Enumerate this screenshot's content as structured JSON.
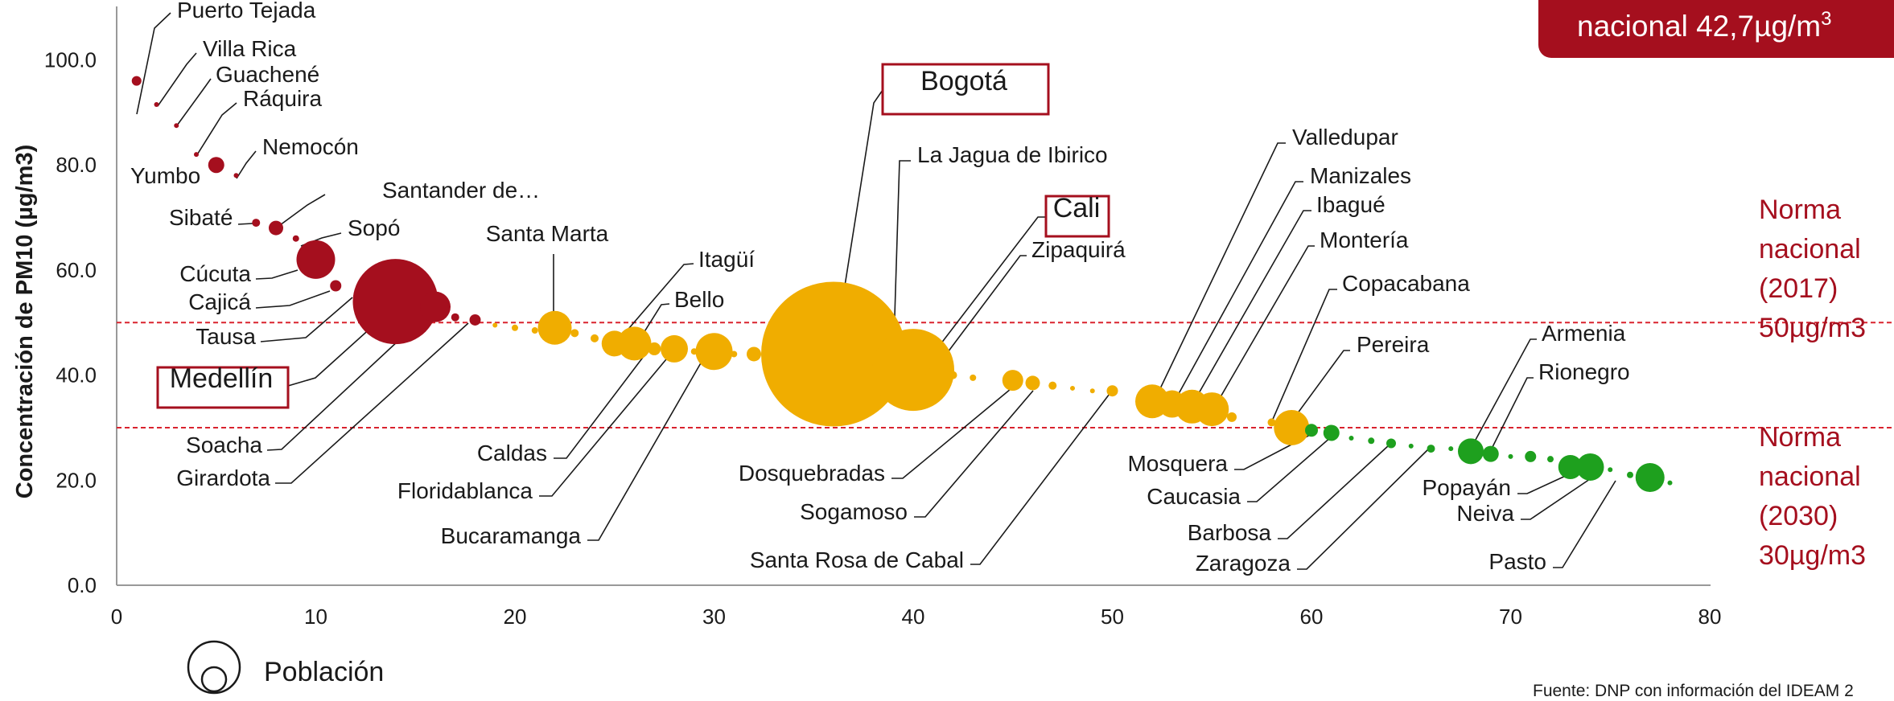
{
  "banner": {
    "text": "nacional 42,7µg/m",
    "sup": "3"
  },
  "norms": [
    {
      "y": 50,
      "lines": [
        "Norma",
        "nacional",
        "(2017)",
        "50µg/m3"
      ]
    },
    {
      "y": 30,
      "lines": [
        "Norma",
        "nacional",
        "(2030)",
        "30µg/m3"
      ]
    }
  ],
  "legend_label": "Población",
  "source": "Fuente: DNP con información del IDEAM 2",
  "colors": {
    "red": "#a50f1e",
    "orange": "#f0ad00",
    "green": "#1ea01e",
    "norm_line": "#d9232e"
  },
  "chart_data": {
    "type": "scatter",
    "ylabel": "Concentración  de PM10 (µg/m3)",
    "xlim": [
      0,
      80
    ],
    "ylim": [
      0,
      110
    ],
    "xticks": [
      0,
      10,
      20,
      30,
      40,
      50,
      60,
      70,
      80
    ],
    "yticks": [
      "0.0",
      "20.0",
      "40.0",
      "60.0",
      "80.0",
      "100.0"
    ],
    "points": [
      {
        "name": "Puerto Tejada",
        "x": 1,
        "y": 96,
        "r": 6,
        "c": "red"
      },
      {
        "name": "Villa Rica",
        "x": 2,
        "y": 91.5,
        "r": 3,
        "c": "red"
      },
      {
        "name": "Guachené",
        "x": 3,
        "y": 87.5,
        "r": 3,
        "c": "red"
      },
      {
        "name": "Ráquira",
        "x": 4,
        "y": 82,
        "r": 3,
        "c": "red"
      },
      {
        "name": "Yumbo",
        "x": 5,
        "y": 80,
        "r": 10,
        "c": "red"
      },
      {
        "name": "Nemocón",
        "x": 6,
        "y": 78,
        "r": 3,
        "c": "red"
      },
      {
        "name": "Sibaté",
        "x": 7,
        "y": 69,
        "r": 5,
        "c": "red"
      },
      {
        "name": "Santander de…",
        "x": 8,
        "y": 68,
        "r": 9,
        "c": "red"
      },
      {
        "name": "Sopó",
        "x": 9,
        "y": 66,
        "r": 4,
        "c": "red"
      },
      {
        "name": "Cúcuta",
        "x": 10,
        "y": 62,
        "r": 24,
        "c": "red"
      },
      {
        "name": "Cajicá",
        "x": 11,
        "y": 57,
        "r": 7,
        "c": "red"
      },
      {
        "name": "Tausa",
        "x": 12,
        "y": 55,
        "r": 3,
        "c": "red"
      },
      {
        "name": "Medellín",
        "x": 14,
        "y": 54,
        "r": 53,
        "c": "red"
      },
      {
        "name": "Soacha",
        "x": 16,
        "y": 53,
        "r": 19,
        "c": "red"
      },
      {
        "name": "",
        "x": 17,
        "y": 51,
        "r": 5,
        "c": "red"
      },
      {
        "name": "Girardota",
        "x": 18,
        "y": 50.5,
        "r": 7,
        "c": "red"
      },
      {
        "name": "",
        "x": 19,
        "y": 49.5,
        "r": 3,
        "c": "orange"
      },
      {
        "name": "",
        "x": 20,
        "y": 49,
        "r": 4,
        "c": "orange"
      },
      {
        "name": "",
        "x": 21,
        "y": 48.5,
        "r": 4,
        "c": "orange"
      },
      {
        "name": "Santa Marta",
        "x": 22,
        "y": 49,
        "r": 21,
        "c": "orange"
      },
      {
        "name": "",
        "x": 23,
        "y": 48,
        "r": 5,
        "c": "orange"
      },
      {
        "name": "",
        "x": 24,
        "y": 47,
        "r": 5,
        "c": "orange"
      },
      {
        "name": "Caldas",
        "x": 25,
        "y": 46,
        "r": 16,
        "c": "orange"
      },
      {
        "name": "Itagüí",
        "x": 26,
        "y": 46,
        "r": 21,
        "c": "orange"
      },
      {
        "name": "Bello",
        "x": 27,
        "y": 45,
        "r": 8,
        "c": "orange"
      },
      {
        "name": "Floridablanca",
        "x": 28,
        "y": 45,
        "r": 17,
        "c": "orange"
      },
      {
        "name": "",
        "x": 29,
        "y": 44.5,
        "r": 4,
        "c": "orange"
      },
      {
        "name": "Bucaramanga",
        "x": 30,
        "y": 44.5,
        "r": 23,
        "c": "orange"
      },
      {
        "name": "",
        "x": 31,
        "y": 44,
        "r": 4,
        "c": "orange"
      },
      {
        "name": "",
        "x": 32,
        "y": 44,
        "r": 9,
        "c": "orange"
      },
      {
        "name": "Bogotá",
        "x": 36,
        "y": 44,
        "r": 90,
        "c": "orange"
      },
      {
        "name": "La Jagua de Ibirico",
        "x": 39,
        "y": 42,
        "r": 4,
        "c": "orange"
      },
      {
        "name": "Cali",
        "x": 40,
        "y": 41,
        "r": 51,
        "c": "orange"
      },
      {
        "name": "Zipaquirá",
        "x": 41,
        "y": 40,
        "r": 9,
        "c": "orange"
      },
      {
        "name": "",
        "x": 42,
        "y": 40,
        "r": 5,
        "c": "orange"
      },
      {
        "name": "",
        "x": 43,
        "y": 39.5,
        "r": 4,
        "c": "orange"
      },
      {
        "name": "Dosquebradas",
        "x": 45,
        "y": 39,
        "r": 13,
        "c": "orange"
      },
      {
        "name": "Sogamoso",
        "x": 46,
        "y": 38.5,
        "r": 9,
        "c": "orange"
      },
      {
        "name": "",
        "x": 47,
        "y": 38,
        "r": 5,
        "c": "orange"
      },
      {
        "name": "",
        "x": 48,
        "y": 37.5,
        "r": 3,
        "c": "orange"
      },
      {
        "name": "",
        "x": 49,
        "y": 37,
        "r": 3,
        "c": "orange"
      },
      {
        "name": "Santa Rosa de Cabal",
        "x": 50,
        "y": 37,
        "r": 7,
        "c": "orange"
      },
      {
        "name": "Valledupar",
        "x": 52,
        "y": 35,
        "r": 21,
        "c": "orange"
      },
      {
        "name": "Manizales",
        "x": 53,
        "y": 34.5,
        "r": 17,
        "c": "orange"
      },
      {
        "name": "Ibagué",
        "x": 54,
        "y": 34,
        "r": 21,
        "c": "orange"
      },
      {
        "name": "Montería",
        "x": 55,
        "y": 33.5,
        "r": 21,
        "c": "orange"
      },
      {
        "name": "",
        "x": 56,
        "y": 32,
        "r": 6,
        "c": "orange"
      },
      {
        "name": "Copacabana",
        "x": 58,
        "y": 31,
        "r": 5,
        "c": "orange"
      },
      {
        "name": "Pereira",
        "x": 59,
        "y": 30,
        "r": 22,
        "c": "orange"
      },
      {
        "name": "Mosquera",
        "x": 60,
        "y": 29.5,
        "r": 8,
        "c": "green"
      },
      {
        "name": "Caucasia",
        "x": 61,
        "y": 29,
        "r": 10,
        "c": "green"
      },
      {
        "name": "",
        "x": 62,
        "y": 28,
        "r": 3,
        "c": "green"
      },
      {
        "name": "",
        "x": 63,
        "y": 27.5,
        "r": 4,
        "c": "green"
      },
      {
        "name": "Barbosa",
        "x": 64,
        "y": 27,
        "r": 6,
        "c": "green"
      },
      {
        "name": "",
        "x": 65,
        "y": 26.5,
        "r": 3,
        "c": "green"
      },
      {
        "name": "Zaragoza",
        "x": 66,
        "y": 26,
        "r": 5,
        "c": "green"
      },
      {
        "name": "",
        "x": 67,
        "y": 26,
        "r": 3,
        "c": "green"
      },
      {
        "name": "Armenia",
        "x": 68,
        "y": 25.5,
        "r": 16,
        "c": "green"
      },
      {
        "name": "Rionegro",
        "x": 69,
        "y": 25,
        "r": 10,
        "c": "green"
      },
      {
        "name": "",
        "x": 70,
        "y": 24.5,
        "r": 3,
        "c": "green"
      },
      {
        "name": "",
        "x": 71,
        "y": 24.5,
        "r": 7,
        "c": "green"
      },
      {
        "name": "",
        "x": 72,
        "y": 24,
        "r": 4,
        "c": "green"
      },
      {
        "name": "Popayán",
        "x": 73,
        "y": 22.5,
        "r": 15,
        "c": "green"
      },
      {
        "name": "Neiva",
        "x": 74,
        "y": 22.5,
        "r": 17,
        "c": "green"
      },
      {
        "name": "",
        "x": 75,
        "y": 22,
        "r": 3,
        "c": "green"
      },
      {
        "name": "",
        "x": 76,
        "y": 21,
        "r": 4,
        "c": "green"
      },
      {
        "name": "Pasto",
        "x": 77,
        "y": 20.5,
        "r": 18,
        "c": "green"
      },
      {
        "name": "",
        "x": 78,
        "y": 19.5,
        "r": 3,
        "c": "green"
      }
    ]
  }
}
